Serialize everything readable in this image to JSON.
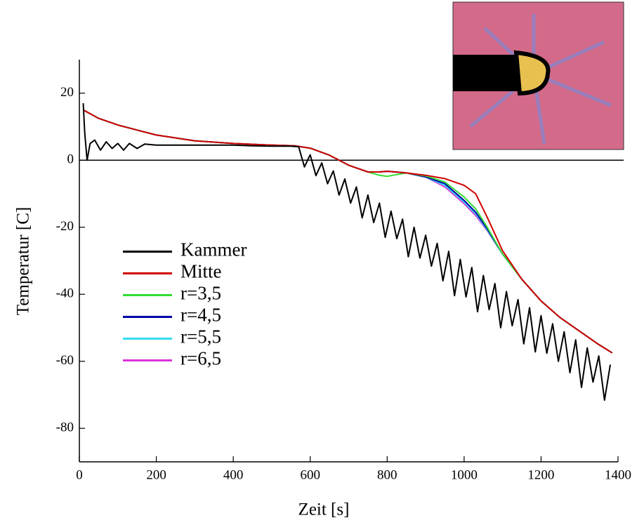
{
  "chart_data": {
    "type": "line",
    "xlabel": "Zeit [s]",
    "ylabel": "Temperatur [C]",
    "xlim": [
      0,
      1400
    ],
    "xticks": [
      0,
      200,
      400,
      600,
      800,
      1000,
      1200,
      1400
    ],
    "ylim": [
      -90,
      30
    ],
    "yticks": [
      -80,
      -60,
      -40,
      -20,
      0,
      20
    ],
    "zero_line": true,
    "legend": "center left",
    "series": [
      {
        "name": "Kammer",
        "color": "#000000",
        "x": [
          10,
          14,
          20,
          28,
          40,
          55,
          70,
          85,
          100,
          115,
          130,
          150,
          170,
          200,
          250,
          300,
          350,
          400,
          450,
          500,
          550,
          570,
          585,
          600,
          615,
          630,
          645,
          660,
          675,
          690,
          705,
          720,
          735,
          750,
          765,
          780,
          795,
          810,
          825,
          840,
          855,
          870,
          885,
          900,
          915,
          930,
          945,
          960,
          975,
          990,
          1005,
          1020,
          1035,
          1050,
          1065,
          1080,
          1095,
          1110,
          1125,
          1140,
          1155,
          1170,
          1185,
          1200,
          1215,
          1230,
          1245,
          1260,
          1275,
          1290,
          1305,
          1320,
          1335,
          1350,
          1365,
          1380
        ],
        "values": [
          17,
          8,
          0,
          5,
          6,
          3,
          5.5,
          3.5,
          5,
          3,
          5,
          3.5,
          4.8,
          4.5,
          4.5,
          4.5,
          4.5,
          4.5,
          4.3,
          4.2,
          4.2,
          4,
          -2,
          1.6,
          -4.6,
          -0.8,
          -7,
          -3.2,
          -10.4,
          -5.6,
          -12.8,
          -8,
          -17.2,
          -10.4,
          -18.6,
          -12.8,
          -23,
          -15.2,
          -23.4,
          -17.6,
          -28.8,
          -20,
          -29.2,
          -22.4,
          -31.6,
          -24.8,
          -36,
          -27.2,
          -40.4,
          -29.6,
          -40.8,
          -32,
          -45.2,
          -34.4,
          -44.6,
          -36.8,
          -50,
          -39.2,
          -49.4,
          -41.6,
          -54.8,
          -44,
          -57.2,
          -46.4,
          -57.6,
          -48.8,
          -60,
          -51.2,
          -63.4,
          -53.6,
          -67.8,
          -56,
          -66.2,
          -58.4,
          -71.6,
          -61
        ]
      },
      {
        "name": "Mitte",
        "color": "#d00000",
        "x": [
          10,
          50,
          100,
          150,
          200,
          300,
          400,
          500,
          560,
          600,
          650,
          700,
          750,
          780,
          800,
          850,
          900,
          950,
          1000,
          1030,
          1060,
          1100,
          1150,
          1200,
          1250,
          1300,
          1350,
          1385
        ],
        "values": [
          15,
          12.5,
          10.5,
          9,
          7.5,
          5.8,
          5,
          4.5,
          4.3,
          3.6,
          1.5,
          -1.5,
          -3.5,
          -3.5,
          -3.3,
          -3.8,
          -4.5,
          -5.5,
          -7.5,
          -10,
          -17,
          -27,
          -35.5,
          -42,
          -47,
          -51,
          -55,
          -57.5
        ]
      },
      {
        "name": "r=3,5",
        "color": "#33dd33",
        "x": [
          10,
          50,
          100,
          150,
          200,
          300,
          400,
          500,
          560,
          600,
          650,
          700,
          750,
          780,
          800,
          850,
          900,
          950,
          1000,
          1030,
          1060,
          1100,
          1150,
          1200,
          1250,
          1300,
          1350,
          1385
        ],
        "values": [
          15,
          12.5,
          10.5,
          9,
          7.5,
          5.8,
          5,
          4.5,
          4.3,
          3.6,
          1.5,
          -1.5,
          -3.5,
          -4.5,
          -4.8,
          -3.8,
          -4.7,
          -6.5,
          -11,
          -14.5,
          -20,
          -28,
          -35.5,
          -42,
          -47,
          -51,
          -55,
          -57.5
        ]
      },
      {
        "name": "r=4,5",
        "color": "#0000aa",
        "x": [
          10,
          50,
          100,
          150,
          200,
          300,
          400,
          500,
          560,
          600,
          650,
          700,
          750,
          780,
          800,
          850,
          900,
          950,
          1000,
          1030,
          1060,
          1100,
          1150,
          1200,
          1250,
          1300,
          1350,
          1385
        ],
        "values": [
          15,
          12.5,
          10.5,
          9,
          7.5,
          5.8,
          5,
          4.5,
          4.3,
          3.6,
          1.5,
          -1.5,
          -3.5,
          -3.5,
          -3.3,
          -3.8,
          -5,
          -7,
          -12,
          -15.5,
          -20.5,
          -28,
          -35.5,
          -42,
          -47,
          -51,
          -55,
          -57.5
        ]
      },
      {
        "name": "r=5,5",
        "color": "#33ddee",
        "x": [
          10,
          50,
          100,
          150,
          200,
          300,
          400,
          500,
          560,
          600,
          650,
          700,
          750,
          780,
          800,
          850,
          900,
          950,
          1000,
          1030,
          1060,
          1100,
          1150,
          1200,
          1250,
          1300,
          1350,
          1385
        ],
        "values": [
          15,
          12.5,
          10.5,
          9,
          7.5,
          5.8,
          5,
          4.5,
          4.3,
          3.6,
          1.5,
          -1.5,
          -3.5,
          -3.5,
          -3.3,
          -3.8,
          -5,
          -7.5,
          -12.5,
          -16,
          -20.8,
          -28,
          -35.5,
          -42,
          -47,
          -51,
          -55,
          -57.5
        ]
      },
      {
        "name": "r=6,5",
        "color": "#dd33dd",
        "x": [
          10,
          50,
          100,
          150,
          200,
          300,
          400,
          500,
          560,
          600,
          650,
          700,
          750,
          780,
          800,
          850,
          900,
          950,
          1000,
          1030,
          1060,
          1100,
          1150,
          1200,
          1250,
          1300,
          1350,
          1385
        ],
        "values": [
          15,
          12.5,
          10.5,
          9,
          7.5,
          5.8,
          5,
          4.5,
          4.3,
          3.6,
          1.5,
          -1.5,
          -3.5,
          -3.5,
          -3.3,
          -3.8,
          -5,
          -8,
          -13,
          -16.5,
          -21,
          -28,
          -35.5,
          -42,
          -47,
          -51,
          -55,
          -57.5
        ]
      }
    ]
  }
}
